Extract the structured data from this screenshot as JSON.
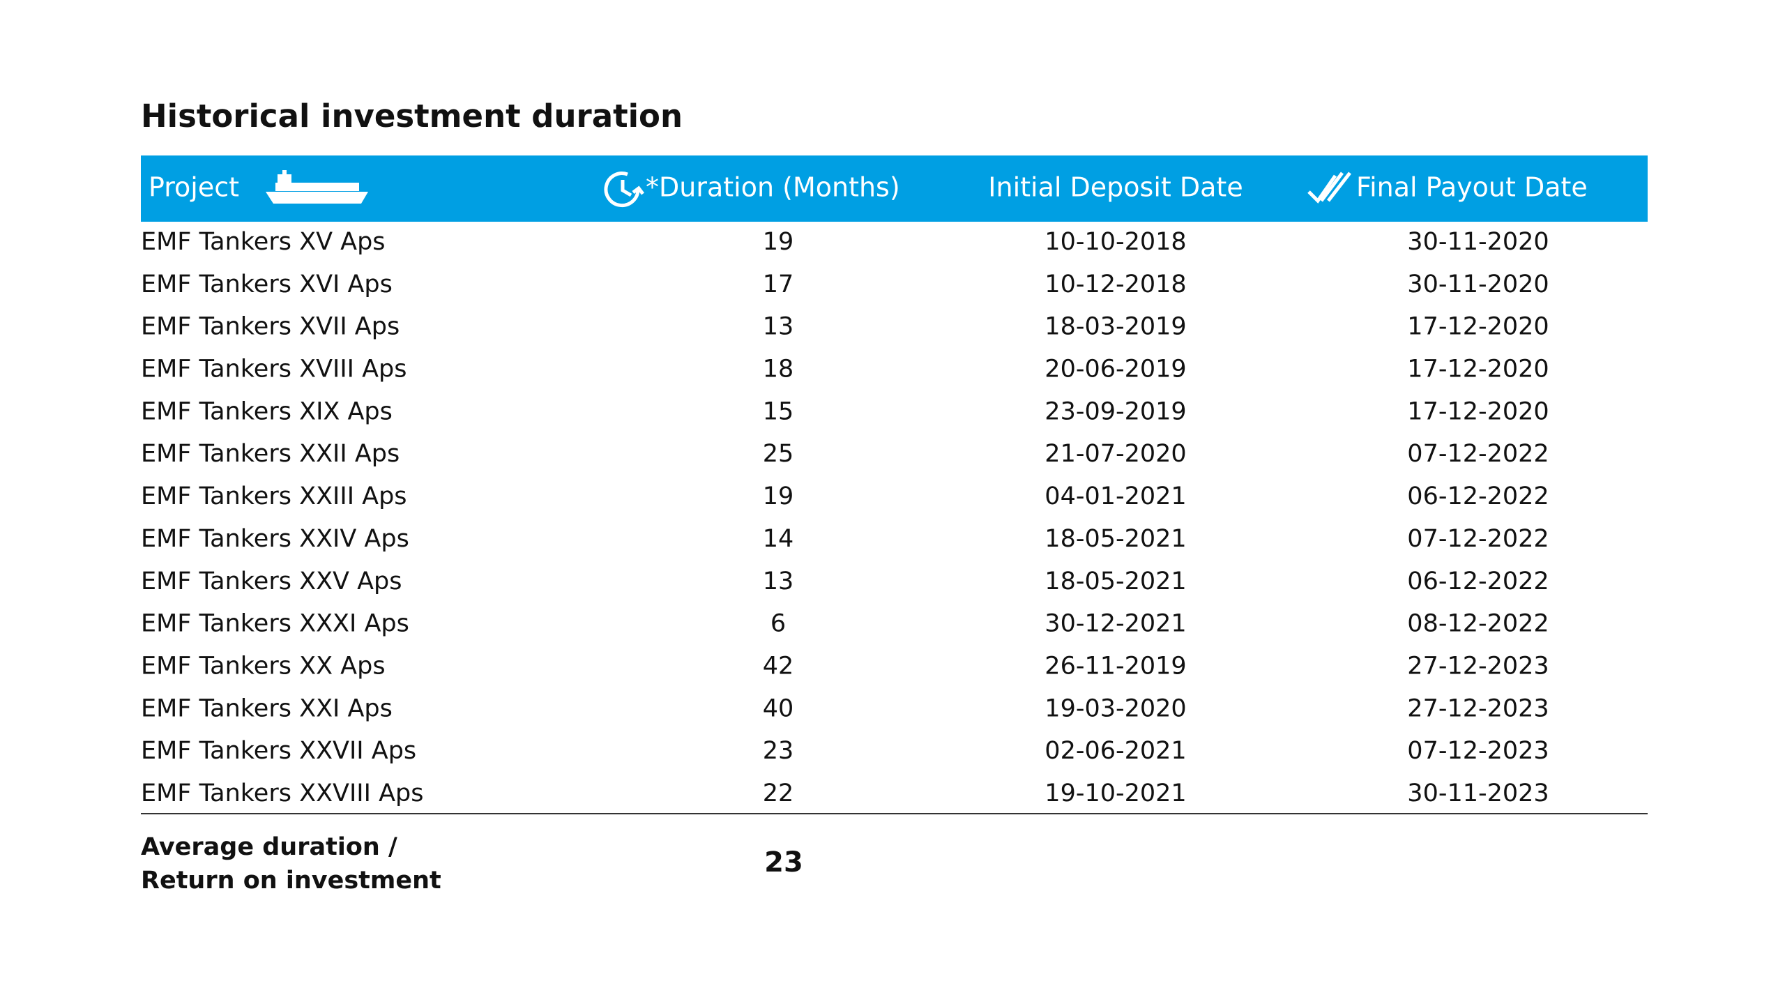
{
  "title": "Historical investment duration",
  "table": {
    "headers": [
      "Project",
      "*Duration (Months)",
      "Initial Deposit Date",
      "Final Payout Date"
    ],
    "rows": [
      [
        "EMF Tankers XV Aps",
        19,
        "10-10-2018",
        "30-11-2020"
      ],
      [
        "EMF Tankers XVI Aps",
        17,
        "10-12-2018",
        "30-11-2020"
      ],
      [
        "EMF Tankers XVII Aps",
        13,
        "18-03-2019",
        "17-12-2020"
      ],
      [
        "EMF Tankers XVIII Aps",
        18,
        "20-06-2019",
        "17-12-2020"
      ],
      [
        "EMF Tankers XIX Aps",
        15,
        "23-09-2019",
        "17-12-2020"
      ],
      [
        "EMF Tankers XXII Aps",
        25,
        "21-07-2020",
        "07-12-2022"
      ],
      [
        "EMF Tankers XXIII Aps",
        19,
        "04-01-2021",
        "06-12-2022"
      ],
      [
        "EMF Tankers XXIV Aps",
        14,
        "18-05-2021",
        "07-12-2022"
      ],
      [
        "EMF Tankers XXV Aps",
        13,
        "18-05-2021",
        "06-12-2022"
      ],
      [
        "EMF Tankers XXXI Aps",
        6,
        "30-12-2021",
        "08-12-2022"
      ],
      [
        "EMF Tankers XX Aps",
        42,
        "26-11-2019",
        "27-12-2023"
      ],
      [
        "EMF Tankers XXI Aps",
        40,
        "19-03-2020",
        "27-12-2023"
      ],
      [
        "EMF Tankers XXVII Aps",
        23,
        "02-06-2021",
        "07-12-2023"
      ],
      [
        "EMF Tankers XXVIII Aps",
        22,
        "19-10-2021",
        "30-11-2023"
      ]
    ]
  },
  "footer": {
    "label": [
      "Average duration /",
      "Return on investment"
    ],
    "value": 23
  }
}
